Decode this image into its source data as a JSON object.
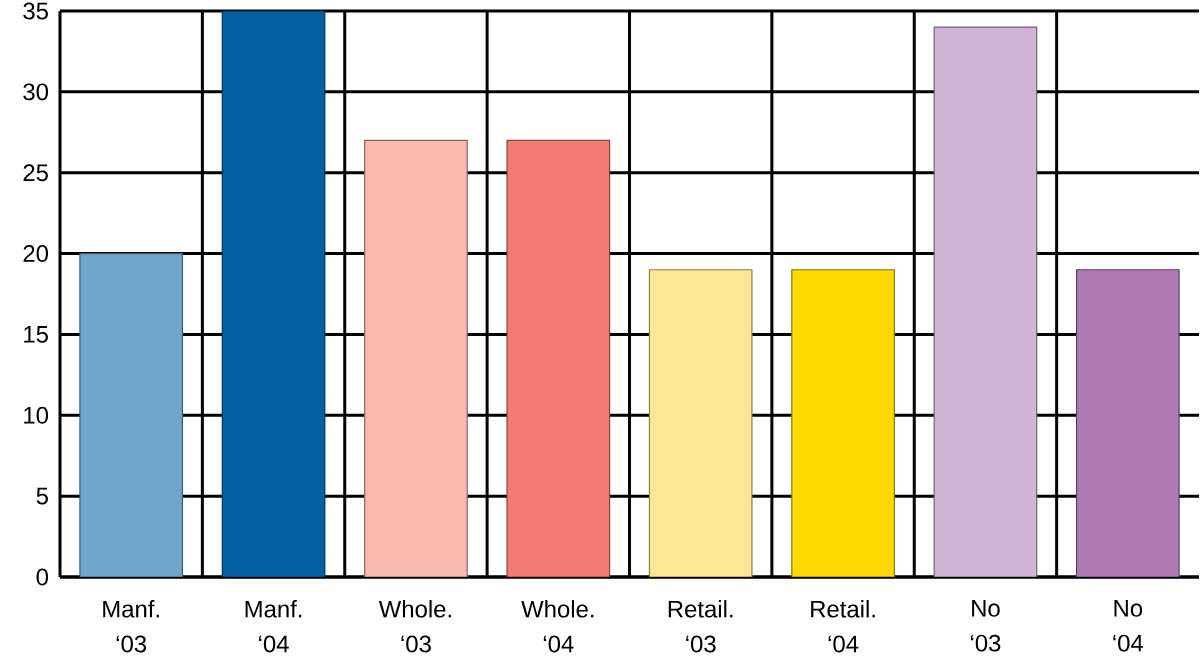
{
  "chart_data": {
    "type": "bar",
    "categories": [
      "Manf. ‘03",
      "Manf. ‘04",
      "Whole. ‘03",
      "Whole. ‘04",
      "Retail. ‘03",
      "Retail. ‘04",
      "No ‘03",
      "No ‘04"
    ],
    "values": [
      20,
      35,
      27,
      27,
      19,
      19,
      34,
      19
    ],
    "colors": [
      "#70a6cc",
      "#0260a3",
      "#f9b9ae",
      "#f37b71",
      "#fee794",
      "#fed903",
      "#d0b4d6",
      "#af79b3"
    ],
    "ylim": [
      0,
      35
    ],
    "yticks": [
      0,
      5,
      10,
      15,
      20,
      25,
      30,
      35
    ],
    "grid": true
  }
}
